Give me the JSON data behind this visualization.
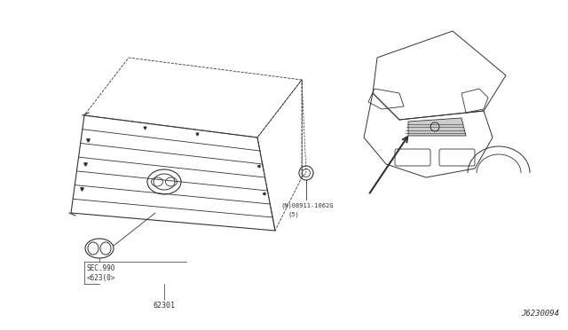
{
  "bg_color": "#ffffff",
  "line_color": "#333333",
  "part_number_grille": "62301",
  "part_label_sec": "SEC.990",
  "part_label_sec2": "<623(0>",
  "part_number_nut": "08911-1062G",
  "part_label_nut_qty": "(5)",
  "diagram_id": "J6230094",
  "nut_label": "(N)08911-1062G"
}
